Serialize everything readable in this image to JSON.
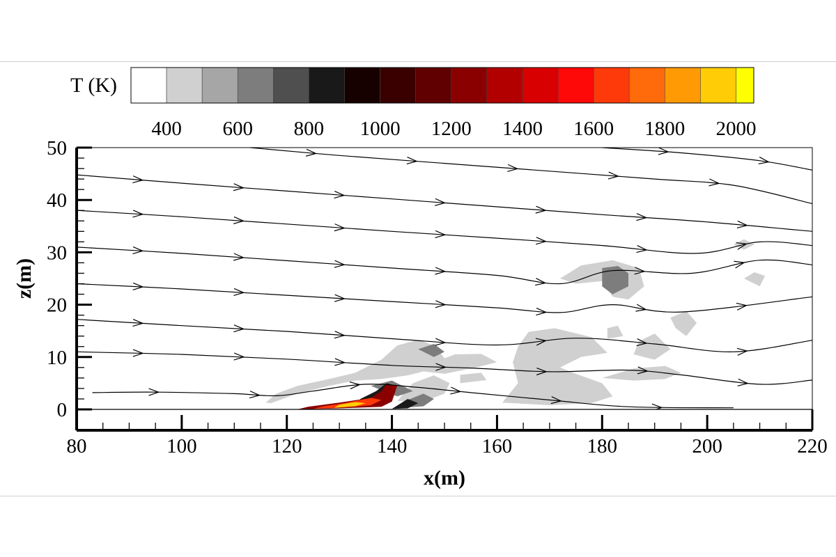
{
  "chart_data": {
    "type": "contour",
    "title": "",
    "xlabel": "x(m)",
    "ylabel": "z(m)",
    "xlim": [
      80,
      220
    ],
    "ylim": [
      -4,
      50
    ],
    "xticks": [
      80,
      100,
      120,
      140,
      160,
      180,
      200,
      220
    ],
    "yticks": [
      0,
      10,
      20,
      30,
      40,
      50
    ],
    "colorbar": {
      "label": "T (K)",
      "levels": [
        300,
        400,
        500,
        600,
        700,
        800,
        900,
        1000,
        1100,
        1200,
        1300,
        1400,
        1500,
        1600,
        1700,
        1800,
        1900,
        2000,
        2050
      ],
      "colors": [
        "#ffffff",
        "#d0d0d0",
        "#a6a6a6",
        "#7d7d7d",
        "#4f4f4f",
        "#191919",
        "#160000",
        "#3a0000",
        "#600000",
        "#8a0000",
        "#b20000",
        "#d80000",
        "#ff0808",
        "#ff3a0a",
        "#ff6a0a",
        "#ff9a05",
        "#ffcc05",
        "#ffff00"
      ],
      "tick_labels": [
        "400",
        "600",
        "800",
        "1000",
        "1200",
        "1400",
        "1600",
        "1800",
        "2000"
      ]
    },
    "streamlines": [
      {
        "points": [
          [
            83,
            3.2
          ],
          [
            95,
            3.3
          ],
          [
            110,
            3.0
          ],
          [
            118,
            2.6
          ],
          [
            125,
            3.5
          ],
          [
            135,
            4.8
          ],
          [
            145,
            4.2
          ],
          [
            155,
            3.2
          ],
          [
            170,
            1.8
          ],
          [
            185,
            0.5
          ],
          [
            205,
            0.3
          ]
        ]
      },
      {
        "points": [
          [
            80,
            11.0
          ],
          [
            100,
            10.5
          ],
          [
            120,
            9.6
          ],
          [
            140,
            8.4
          ],
          [
            155,
            7.9
          ],
          [
            170,
            7.2
          ],
          [
            185,
            7.5
          ],
          [
            195,
            6.6
          ],
          [
            210,
            4.8
          ],
          [
            220,
            5.6
          ]
        ]
      },
      {
        "points": [
          [
            80,
            17.2
          ],
          [
            100,
            16.0
          ],
          [
            120,
            14.9
          ],
          [
            140,
            13.5
          ],
          [
            160,
            12.3
          ],
          [
            175,
            13.6
          ],
          [
            190,
            12.5
          ],
          [
            205,
            11.0
          ],
          [
            220,
            13.2
          ]
        ]
      },
      {
        "points": [
          [
            80,
            24.0
          ],
          [
            100,
            23.0
          ],
          [
            120,
            21.8
          ],
          [
            140,
            20.6
          ],
          [
            160,
            19.4
          ],
          [
            172,
            18.5
          ],
          [
            182,
            20.0
          ],
          [
            195,
            18.6
          ],
          [
            220,
            21.5
          ]
        ]
      },
      {
        "points": [
          [
            80,
            31.0
          ],
          [
            100,
            29.8
          ],
          [
            120,
            28.4
          ],
          [
            140,
            27.0
          ],
          [
            160,
            25.6
          ],
          [
            172,
            24.0
          ],
          [
            182,
            26.5
          ],
          [
            197,
            26.0
          ],
          [
            210,
            28.5
          ],
          [
            220,
            27.6
          ]
        ]
      },
      {
        "points": [
          [
            80,
            38.0
          ],
          [
            100,
            36.8
          ],
          [
            120,
            35.4
          ],
          [
            140,
            34.0
          ],
          [
            160,
            32.7
          ],
          [
            180,
            31.3
          ],
          [
            198,
            29.8
          ],
          [
            210,
            32.0
          ],
          [
            220,
            31.3
          ]
        ]
      },
      {
        "points": [
          [
            80,
            44.8
          ],
          [
            100,
            43.2
          ],
          [
            120,
            41.7
          ],
          [
            140,
            40.2
          ],
          [
            160,
            38.7
          ],
          [
            180,
            37.2
          ],
          [
            200,
            35.8
          ],
          [
            220,
            34.0
          ]
        ]
      },
      {
        "points": [
          [
            113,
            50.0
          ],
          [
            130,
            48.5
          ],
          [
            150,
            47.0
          ],
          [
            170,
            45.5
          ],
          [
            190,
            44.0
          ],
          [
            205,
            42.8
          ],
          [
            220,
            39.3
          ]
        ]
      },
      {
        "points": [
          [
            180,
            50.0
          ],
          [
            195,
            49.0
          ],
          [
            210,
            47.5
          ],
          [
            220,
            45.7
          ]
        ]
      }
    ],
    "temperature_regions": [
      {
        "T": 450,
        "points": [
          [
            117,
            1.2
          ],
          [
            122,
            3.0
          ],
          [
            128,
            4.5
          ],
          [
            133,
            5.5
          ],
          [
            138,
            5.8
          ],
          [
            143,
            6.5
          ],
          [
            147,
            7.5
          ],
          [
            150,
            9.8
          ],
          [
            148,
            12.2
          ],
          [
            145,
            13.3
          ],
          [
            141,
            12.2
          ],
          [
            138,
            9.5
          ],
          [
            133,
            7.0
          ],
          [
            128,
            5.8
          ],
          [
            122,
            4.5
          ],
          [
            118,
            3.0
          ],
          [
            116,
            1.3
          ]
        ]
      },
      {
        "T": 450,
        "points": [
          [
            141,
            1.6
          ],
          [
            146,
            1.5
          ],
          [
            150,
            3.0
          ],
          [
            151,
            5.0
          ],
          [
            148,
            6.5
          ],
          [
            144,
            5.0
          ]
        ]
      },
      {
        "T": 450,
        "points": [
          [
            144,
            7.5
          ],
          [
            150,
            6.8
          ],
          [
            156,
            8.0
          ],
          [
            160,
            9.0
          ],
          [
            157,
            10.6
          ],
          [
            152,
            10.5
          ],
          [
            148,
            9.0
          ]
        ]
      },
      {
        "T": 450,
        "points": [
          [
            153,
            5.0
          ],
          [
            158,
            5.6
          ],
          [
            157,
            7.0
          ],
          [
            153,
            6.6
          ]
        ]
      },
      {
        "T": 450,
        "points": [
          [
            161,
            1.3
          ],
          [
            170,
            0.8
          ],
          [
            178,
            1.2
          ],
          [
            182,
            2.5
          ],
          [
            180,
            5.0
          ],
          [
            175,
            6.8
          ],
          [
            172,
            8.0
          ],
          [
            176,
            10.0
          ],
          [
            181,
            10.8
          ],
          [
            178,
            13.8
          ],
          [
            171,
            15.5
          ],
          [
            166,
            14.8
          ],
          [
            164,
            12.0
          ],
          [
            163,
            9.0
          ],
          [
            164,
            5.0
          ]
        ]
      },
      {
        "T": 450,
        "points": [
          [
            180,
            6.0
          ],
          [
            186,
            5.5
          ],
          [
            192,
            5.8
          ],
          [
            195,
            7.0
          ],
          [
            192,
            8.3
          ],
          [
            186,
            7.8
          ]
        ]
      },
      {
        "T": 450,
        "points": [
          [
            186,
            10.5
          ],
          [
            190,
            9.5
          ],
          [
            193,
            11.5
          ],
          [
            190,
            14.5
          ],
          [
            187,
            13.0
          ]
        ]
      },
      {
        "T": 450,
        "points": [
          [
            181,
            13.5
          ],
          [
            184,
            14.0
          ],
          [
            183,
            16.0
          ],
          [
            181,
            15.5
          ]
        ]
      },
      {
        "T": 450,
        "points": [
          [
            193,
            17.5
          ],
          [
            196,
            18.8
          ],
          [
            198,
            16.5
          ],
          [
            196,
            14.0
          ],
          [
            194,
            15.5
          ]
        ]
      },
      {
        "T": 450,
        "points": [
          [
            172,
            25.0
          ],
          [
            176,
            27.5
          ],
          [
            182,
            28.5
          ],
          [
            187,
            27.0
          ],
          [
            188,
            23.5
          ],
          [
            185,
            21.0
          ],
          [
            182,
            21.5
          ],
          [
            180,
            24.5
          ],
          [
            175,
            24.0
          ]
        ]
      },
      {
        "T": 450,
        "points": [
          [
            205,
            31.5
          ],
          [
            207,
            32.5
          ],
          [
            209,
            31.5
          ],
          [
            207,
            30.5
          ]
        ]
      },
      {
        "T": 450,
        "points": [
          [
            207,
            25.0
          ],
          [
            210,
            23.5
          ],
          [
            211,
            25.5
          ],
          [
            209,
            26.2
          ]
        ]
      },
      {
        "T": 600,
        "points": [
          [
            180,
            27.0
          ],
          [
            183,
            27.4
          ],
          [
            185,
            26.0
          ],
          [
            185,
            23.5
          ],
          [
            182,
            22.0
          ],
          [
            180,
            23.5
          ]
        ]
      },
      {
        "T": 600,
        "points": [
          [
            145,
            11.5
          ],
          [
            148,
            12.5
          ],
          [
            150,
            11.0
          ],
          [
            148,
            10.0
          ]
        ]
      },
      {
        "T": 600,
        "points": [
          [
            136,
            4.5
          ],
          [
            140,
            5.5
          ],
          [
            144,
            3.5
          ],
          [
            141,
            2.5
          ]
        ]
      },
      {
        "T": 600,
        "points": [
          [
            142,
            0.3
          ],
          [
            146,
            0.6
          ],
          [
            148,
            2.0
          ],
          [
            146,
            3.0
          ],
          [
            143,
            1.8
          ]
        ]
      },
      {
        "T": 850,
        "points": [
          [
            133,
            0.5
          ],
          [
            137,
            1.5
          ],
          [
            140,
            2.5
          ],
          [
            141,
            4.5
          ],
          [
            139,
            5.0
          ],
          [
            137,
            3.5
          ],
          [
            134,
            2.0
          ]
        ]
      },
      {
        "T": 850,
        "points": [
          [
            140,
            0.1
          ],
          [
            143,
            0.2
          ],
          [
            145,
            1.2
          ],
          [
            143,
            2.0
          ]
        ]
      },
      {
        "T": 1250,
        "points": [
          [
            122,
            0.0
          ],
          [
            130,
            0.2
          ],
          [
            138,
            0.5
          ],
          [
            140,
            1.5
          ],
          [
            141,
            4.5
          ],
          [
            139,
            4.9
          ],
          [
            138,
            3.5
          ],
          [
            136,
            2.2
          ],
          [
            130,
            1.3
          ],
          [
            124,
            0.5
          ]
        ]
      },
      {
        "T": 1650,
        "points": [
          [
            125,
            0.1
          ],
          [
            131,
            0.4
          ],
          [
            136,
            0.8
          ],
          [
            138,
            1.8
          ],
          [
            136,
            2.2
          ],
          [
            131,
            1.2
          ],
          [
            127,
            0.6
          ]
        ]
      },
      {
        "T": 1900,
        "points": [
          [
            129,
            0.3
          ],
          [
            133,
            0.6
          ],
          [
            135,
            1.2
          ],
          [
            133,
            1.4
          ],
          [
            130,
            0.9
          ]
        ]
      }
    ]
  }
}
